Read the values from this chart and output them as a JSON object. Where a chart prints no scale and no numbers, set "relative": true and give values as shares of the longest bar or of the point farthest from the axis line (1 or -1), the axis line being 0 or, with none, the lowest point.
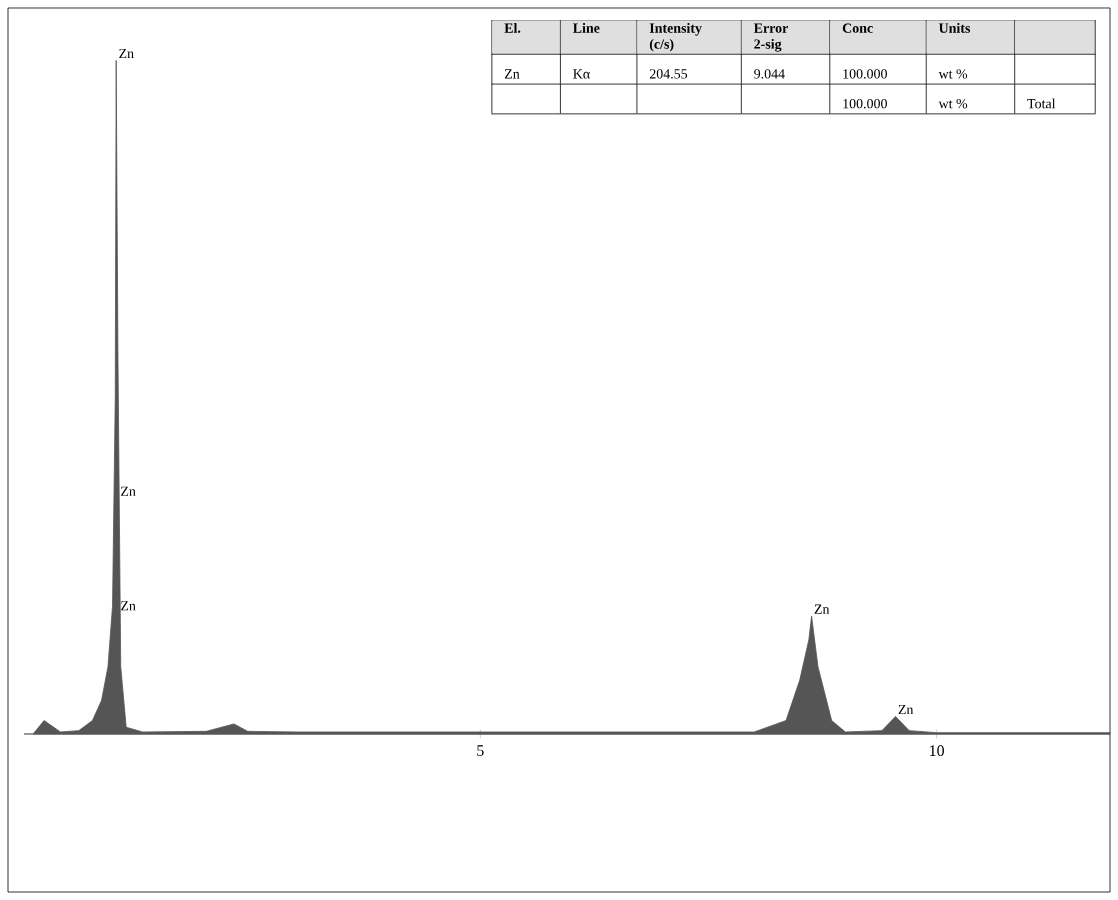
{
  "chart_data": {
    "type": "area",
    "relative": true,
    "color": "#555555",
    "x": [
      0.1,
      0.22,
      0.4,
      0.6,
      0.75,
      0.85,
      0.92,
      0.97,
      1.0,
      1.01,
      1.03,
      1.06,
      1.12,
      1.3,
      2.0,
      2.3,
      2.45,
      3.0,
      5.0,
      8.0,
      8.35,
      8.5,
      8.6,
      8.63,
      8.7,
      8.85,
      9.0,
      9.4,
      9.55,
      9.7,
      10.0,
      11.9
    ],
    "values": [
      0,
      0.02,
      0.003,
      0.005,
      0.02,
      0.05,
      0.1,
      0.19,
      0.5,
      1.0,
      0.55,
      0.1,
      0.01,
      0.003,
      0.004,
      0.015,
      0.004,
      0.003,
      0.003,
      0.003,
      0.02,
      0.08,
      0.14,
      0.175,
      0.1,
      0.02,
      0.003,
      0.005,
      0.026,
      0.005,
      0.002,
      0.002
    ],
    "xlim": [
      0,
      11.9
    ],
    "xticks": [
      5,
      10
    ],
    "tick_labels": "x",
    "annotations": [
      {
        "text": "Zn",
        "x": 1.01,
        "y": 1.0
      },
      {
        "text": "Zn",
        "x": 1.03,
        "y": 0.35
      },
      {
        "text": "Zn",
        "x": 1.03,
        "y": 0.18
      },
      {
        "text": "Zn",
        "x": 8.63,
        "y": 0.175
      },
      {
        "text": "Zn",
        "x": 9.55,
        "y": 0.026
      },
      "El.",
      "Line",
      "Intensity (c/s)",
      "Error 2-sig",
      "Conc",
      "Units",
      "Zn",
      "Kα",
      "204.55",
      "9.044",
      "100.000",
      "wt %",
      "100.000",
      "wt %",
      "Total"
    ]
  }
}
